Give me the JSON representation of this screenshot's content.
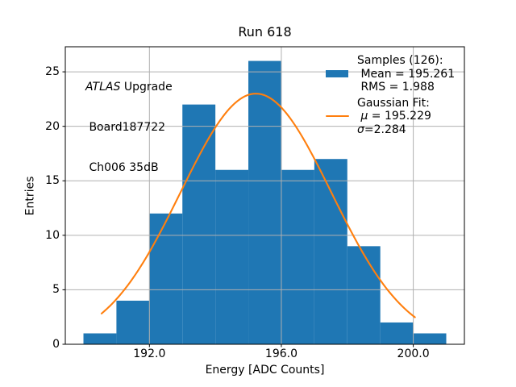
{
  "title": "Run 618",
  "axes": {
    "xlabel": "Energy [ADC Counts]",
    "ylabel": "Entries"
  },
  "annotation": {
    "line1_italic": "ATLAS",
    "line1_rest": " Upgrade",
    "line2": " Board187722",
    "line3": " Ch006 35dB"
  },
  "legend": {
    "samples_header": "Samples (126):",
    "samples_mean": " Mean = 195.261",
    "samples_rms": " RMS = 1.988",
    "fit_header": "Gaussian Fit:",
    "fit_mu_symbol": " μ",
    "fit_mu_rest": " = 195.229",
    "fit_sigma_symbol": "σ",
    "fit_sigma_rest": "=2.284"
  },
  "colors": {
    "histogram": "#1f77b4",
    "fit_line": "#ff7f0e",
    "grid": "#b0b0b0",
    "spine": "#000000",
    "text": "#000000"
  },
  "chart_data": {
    "type": "bar",
    "subtype": "histogram",
    "title": "Run 618",
    "xlabel": "Energy [ADC Counts]",
    "ylabel": "Entries",
    "bin_edges": [
      190,
      191,
      192,
      193,
      194,
      195,
      196,
      197,
      198,
      199,
      200,
      201
    ],
    "counts": [
      1,
      4,
      12,
      22,
      16,
      26,
      16,
      17,
      9,
      2,
      1
    ],
    "n_samples": 126,
    "mean": 195.261,
    "rms": 1.988,
    "fit": {
      "type": "gaussian",
      "amplitude": 23.0,
      "mu": 195.229,
      "sigma": 2.284,
      "x_start": 190.55,
      "x_end": 200.05
    },
    "xlim": [
      189.45,
      201.55
    ],
    "ylim": [
      0,
      27.3
    ],
    "xticks": [
      192.0,
      196.0,
      200.0
    ],
    "xtick_labels": [
      "192.0",
      "196.0",
      "200.0"
    ],
    "yticks": [
      0,
      5,
      10,
      15,
      20,
      25
    ],
    "ytick_labels": [
      "0",
      "5",
      "10",
      "15",
      "20",
      "25"
    ],
    "grid": true,
    "legend_position": "upper right"
  }
}
